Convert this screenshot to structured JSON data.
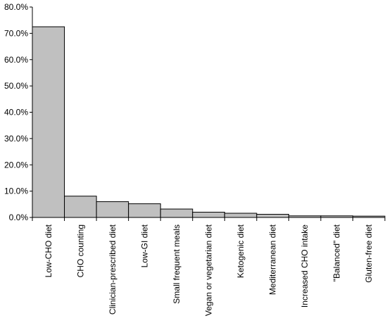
{
  "chart_data": {
    "type": "bar",
    "title": "",
    "xlabel": "",
    "ylabel": "",
    "ylim": [
      0,
      80
    ],
    "yticks": [
      "0.0%",
      "10.0%",
      "20.0%",
      "30.0%",
      "40.0%",
      "50.0%",
      "60.0%",
      "70.0%",
      "80.0%"
    ],
    "grid": false,
    "legend": "none",
    "bar_color": "#c0c0c0",
    "bar_edge_color": "#000000",
    "categories": [
      "Low-CHO diet",
      "CHO counting",
      "Clinician-prescribed diet",
      "Low-GI diet",
      "Small frequent meals",
      "Vegan or vegetarian diet",
      "Ketogenic diet",
      "Mediterranean diet",
      "Increased CHO intake",
      "\"Balanced\" diet",
      "Gluten-free diet"
    ],
    "values": [
      72.5,
      8.1,
      6.0,
      5.2,
      3.2,
      2.0,
      1.6,
      1.2,
      0.6,
      0.6,
      0.5
    ]
  }
}
